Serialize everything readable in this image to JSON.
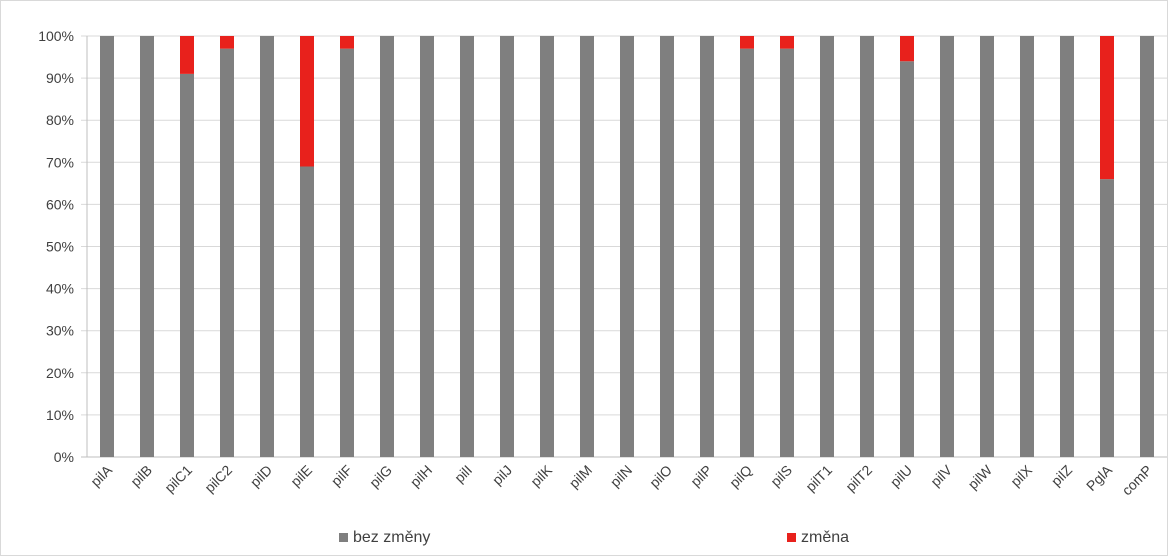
{
  "chart_data": {
    "type": "bar",
    "stacked": true,
    "percent": true,
    "categories": [
      "pilA",
      "pilB",
      "pilC1",
      "pilC2",
      "pilD",
      "pilE",
      "pilF",
      "pilG",
      "pilH",
      "pilI",
      "pilJ",
      "pilK",
      "pilM",
      "pilN",
      "pilO",
      "pilP",
      "pilQ",
      "pilS",
      "pilT1",
      "pilT2",
      "pilU",
      "pilV",
      "pilW",
      "pilX",
      "pilZ",
      "PglA",
      "comP"
    ],
    "series": [
      {
        "name": "bez změny",
        "color": "#7f7f7f",
        "values": [
          100,
          100,
          91,
          97,
          100,
          69,
          97,
          100,
          100,
          100,
          100,
          100,
          100,
          100,
          100,
          100,
          97,
          97,
          100,
          100,
          94,
          100,
          100,
          100,
          100,
          66,
          100
        ]
      },
      {
        "name": "změna",
        "color": "#e8211c",
        "values": [
          0,
          0,
          9,
          3,
          0,
          31,
          3,
          0,
          0,
          0,
          0,
          0,
          0,
          0,
          0,
          0,
          3,
          3,
          0,
          0,
          6,
          0,
          0,
          0,
          0,
          34,
          0
        ]
      }
    ],
    "ylim": [
      0,
      100
    ],
    "yticks": [
      "0%",
      "10%",
      "20%",
      "30%",
      "40%",
      "50%",
      "60%",
      "70%",
      "80%",
      "90%",
      "100%"
    ],
    "grid": true,
    "legend_position": "bottom",
    "title": "",
    "xlabel": "",
    "ylabel": ""
  }
}
